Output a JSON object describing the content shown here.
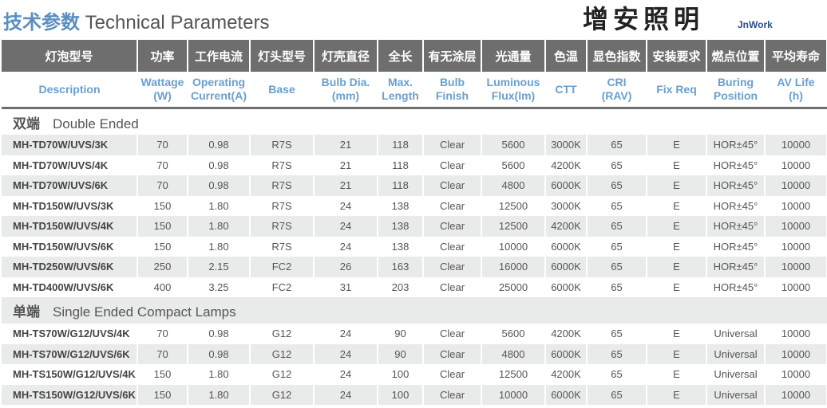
{
  "title": {
    "cn": "技术参数",
    "en": "Technical Parameters"
  },
  "header_cn": [
    "灯泡型号",
    "功率",
    "工作电流",
    "灯头型号",
    "灯壳直径",
    "全长",
    "有无涂层",
    "光通量",
    "色温",
    "显色指数",
    "安装要求",
    "燃点位置",
    "平均寿命"
  ],
  "header_en": [
    [
      "Description",
      ""
    ],
    [
      "Wattage",
      "(W)"
    ],
    [
      "Operating",
      "Current(A)"
    ],
    [
      "Base",
      ""
    ],
    [
      "Bulb Dia.",
      "(mm)"
    ],
    [
      "Max.",
      "Length"
    ],
    [
      "Bulb",
      "Finish"
    ],
    [
      "Luminous",
      "Flux(lm)"
    ],
    [
      "CTT",
      ""
    ],
    [
      "CRI",
      "(RAV)"
    ],
    [
      "Fix Req",
      ""
    ],
    [
      "Buring",
      "Position"
    ],
    [
      "AV Life",
      "(h)"
    ]
  ],
  "sections": [
    {
      "cn": "双端",
      "en": "Double Ended",
      "rows": [
        [
          "MH-TD70W/UVS/3K",
          "70",
          "0.98",
          "R7S",
          "21",
          "118",
          "Clear",
          "5600",
          "3000K",
          "65",
          "E",
          "HOR±45°",
          "10000"
        ],
        [
          "MH-TD70W/UVS/4K",
          "70",
          "0.98",
          "R7S",
          "21",
          "118",
          "Clear",
          "5600",
          "4200K",
          "65",
          "E",
          "HOR±45°",
          "10000"
        ],
        [
          "MH-TD70W/UVS/6K",
          "70",
          "0.98",
          "R7S",
          "21",
          "118",
          "Clear",
          "4800",
          "6000K",
          "65",
          "E",
          "HOR±45°",
          "10000"
        ],
        [
          "MH-TD150W/UVS/3K",
          "150",
          "1.80",
          "R7S",
          "24",
          "138",
          "Clear",
          "12500",
          "3000K",
          "65",
          "E",
          "HOR±45°",
          "10000"
        ],
        [
          "MH-TD150W/UVS/4K",
          "150",
          "1.80",
          "R7S",
          "24",
          "138",
          "Clear",
          "12500",
          "4200K",
          "65",
          "E",
          "HOR±45°",
          "10000"
        ],
        [
          "MH-TD150W/UVS/6K",
          "150",
          "1.80",
          "R7S",
          "24",
          "138",
          "Clear",
          "10000",
          "6000K",
          "65",
          "E",
          "HOR±45°",
          "10000"
        ],
        [
          "MH-TD250W/UVS/6K",
          "250",
          "2.15",
          "FC2",
          "26",
          "163",
          "Clear",
          "16000",
          "6000K",
          "65",
          "E",
          "HOR±45°",
          "10000"
        ],
        [
          "MH-TD400W/UVS/6K",
          "400",
          "3.25",
          "FC2",
          "31",
          "203",
          "Clear",
          "25000",
          "6000K",
          "65",
          "E",
          "HOR±45°",
          "10000"
        ]
      ]
    },
    {
      "cn": "单端",
      "en": "Single Ended Compact Lamps",
      "rows": [
        [
          "MH-TS70W/G12/UVS/4K",
          "70",
          "0.98",
          "G12",
          "24",
          "90",
          "Clear",
          "5600",
          "4200K",
          "65",
          "E",
          "Universal",
          "10000"
        ],
        [
          "MH-TS70W/G12/UVS/6K",
          "70",
          "0.98",
          "G12",
          "24",
          "90",
          "Clear",
          "4800",
          "6000K",
          "65",
          "E",
          "Universal",
          "10000"
        ],
        [
          "MH-TS150W/G12/UVS/4K",
          "150",
          "1.80",
          "G12",
          "24",
          "100",
          "Clear",
          "12500",
          "4200K",
          "65",
          "E",
          "Universal",
          "10000"
        ],
        [
          "MH-TS150W/G12/UVS/6K",
          "150",
          "1.80",
          "G12",
          "24",
          "100",
          "Clear",
          "10000",
          "6000K",
          "65",
          "E",
          "Universal",
          "10000"
        ]
      ]
    }
  ],
  "watermark": {
    "text": "增安照明",
    "sub": "JnWork"
  },
  "colors": {
    "header_bg": "#6e6e6e",
    "header_en": "#6a9fcc",
    "title_cn": "#5b8fbf",
    "row_alt": "#e9eaea"
  }
}
